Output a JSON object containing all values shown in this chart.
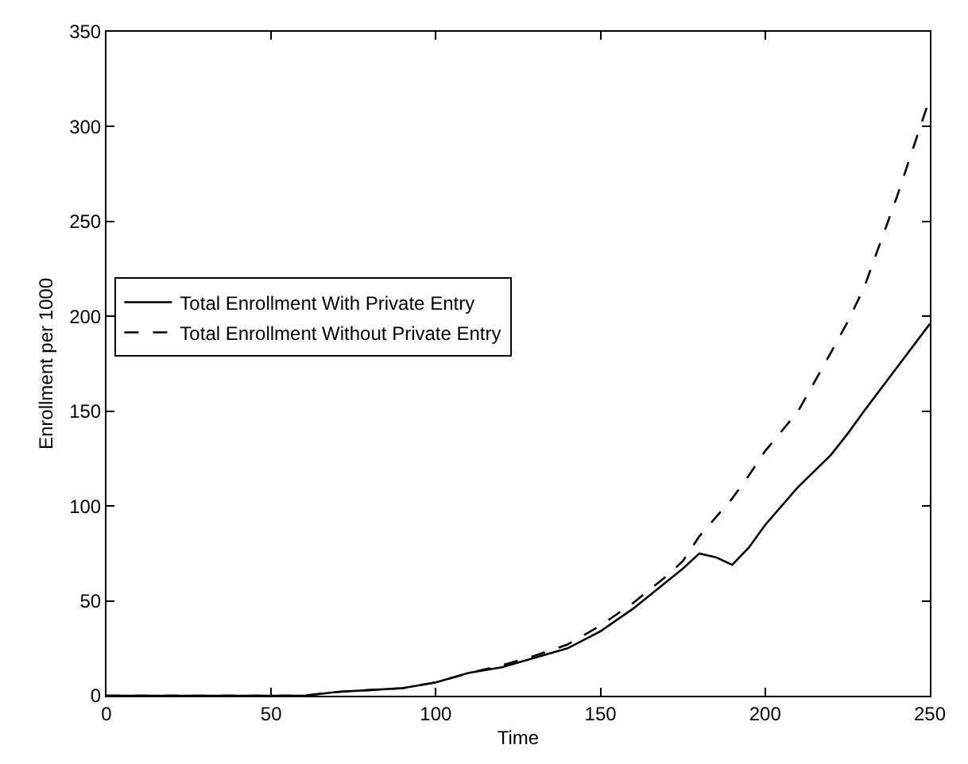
{
  "chart_data": {
    "type": "line",
    "xlabel": "Time",
    "ylabel": "Enrollment per 1000",
    "xlim": [
      0,
      250
    ],
    "ylim": [
      0,
      350
    ],
    "xticks": [
      0,
      50,
      100,
      150,
      200,
      250
    ],
    "yticks": [
      0,
      50,
      100,
      150,
      200,
      250,
      300,
      350
    ],
    "grid": false,
    "legend": "left",
    "marker": "none",
    "x": [
      0,
      20,
      40,
      60,
      70,
      80,
      90,
      100,
      110,
      120,
      130,
      140,
      150,
      160,
      170,
      175,
      180,
      185,
      190,
      195,
      200,
      210,
      220,
      225,
      230,
      240,
      250
    ],
    "series": [
      {
        "name": "Total Enrollment With Private Entry",
        "color": "#000000",
        "line_style": "solid",
        "values": [
          0,
          0,
          0,
          0,
          2,
          3,
          4,
          7,
          12,
          15,
          20,
          25,
          34,
          46,
          60,
          67,
          75,
          73,
          69,
          78,
          90,
          110,
          127,
          138,
          150,
          173,
          196
        ]
      },
      {
        "name": "Total Enrollment Without Private Entry",
        "color": "#000000",
        "line_style": "dashed",
        "values": [
          0,
          0,
          0,
          0,
          2,
          3,
          4,
          7,
          12,
          16,
          21,
          27,
          37,
          49,
          63,
          71,
          84,
          94,
          104,
          116,
          129,
          150,
          181,
          197,
          215,
          263,
          315
        ]
      }
    ]
  }
}
